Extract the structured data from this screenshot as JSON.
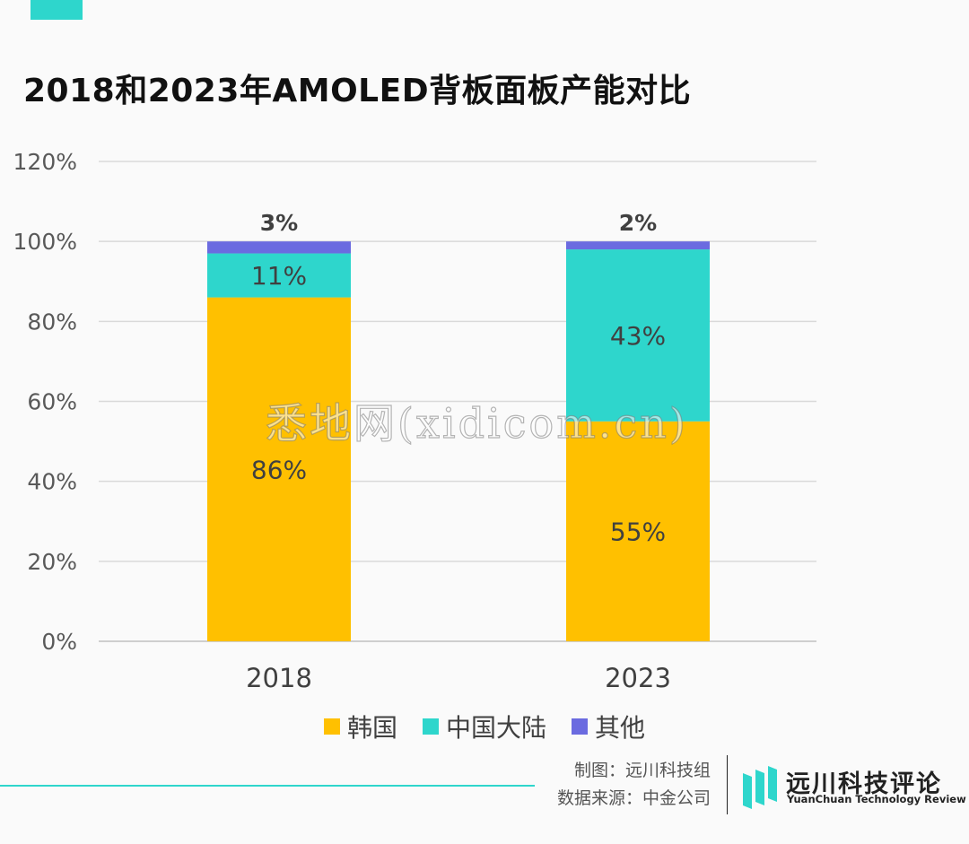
{
  "title": "2018和2023年AMOLED背板面板产能对比",
  "colors": {
    "accent": "#2ed6cc",
    "korea": "#ffc000",
    "mainland_china": "#2ed6cc",
    "other": "#6b6be0",
    "grid": "#d9d9d9"
  },
  "chart_data": {
    "type": "bar",
    "stacked": true,
    "title": "2018和2023年AMOLED背板面板产能对比",
    "categories": [
      "2018",
      "2023"
    ],
    "series": [
      {
        "name": "韩国",
        "values": [
          86,
          55
        ],
        "labels": [
          "86%",
          "55%"
        ]
      },
      {
        "name": "中国大陆",
        "values": [
          11,
          43
        ],
        "labels": [
          "11%",
          "43%"
        ]
      },
      {
        "name": "其他",
        "values": [
          3,
          2
        ],
        "labels": [
          "3%",
          "2%"
        ]
      }
    ],
    "ylim": [
      0,
      120
    ],
    "yticks": [
      "0%",
      "20%",
      "40%",
      "60%",
      "80%",
      "100%",
      "120%"
    ],
    "grid": true,
    "legend_position": "bottom"
  },
  "legend": [
    {
      "label": "韩国",
      "color": "#ffc000"
    },
    {
      "label": "中国大陆",
      "color": "#2ed6cc"
    },
    {
      "label": "其他",
      "color": "#6b6be0"
    }
  ],
  "watermark": "悉地网(xidicom.cn)",
  "credits": {
    "maker": "制图：远川科技组",
    "source": "数据来源：中金公司"
  },
  "logo": {
    "name_cn": "远川科技评论",
    "name_en": "YuanChuan Technology Review"
  }
}
